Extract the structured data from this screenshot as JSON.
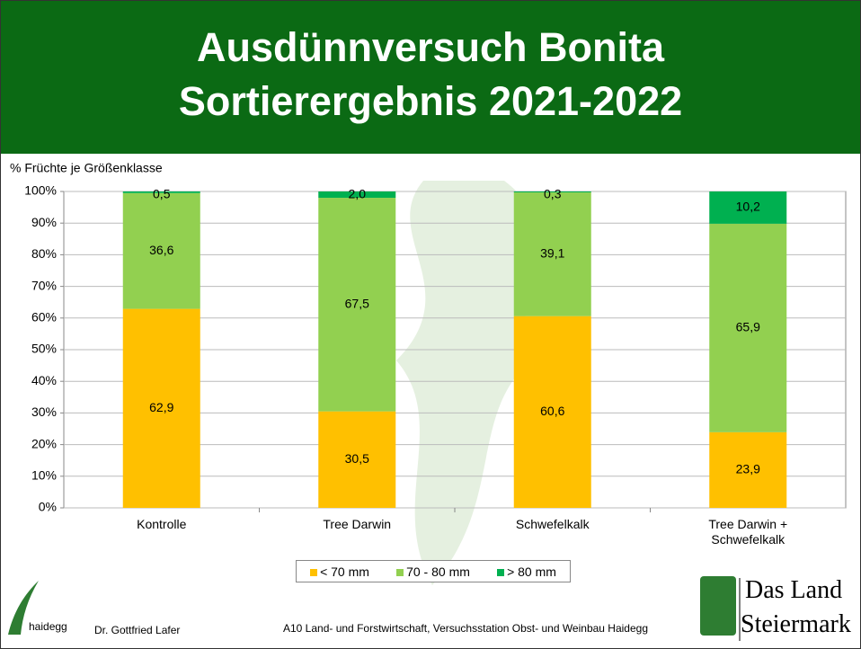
{
  "header": {
    "title_lines": [
      "Ausdünnversuch Bonita",
      "Sortierergebnis 2021-2022"
    ]
  },
  "chart_data": {
    "type": "stacked_bar",
    "y_axis_label": "% Früchte je Größenklasse",
    "categories": [
      "Kontrolle",
      "Tree Darwin",
      "Schwefelkalk",
      "Tree Darwin + Schwefelkalk"
    ],
    "series": [
      {
        "name": "< 70 mm",
        "color": "#ffc000",
        "values": [
          62.9,
          30.5,
          60.6,
          23.9
        ],
        "value_labels": [
          "62,9",
          "30,5",
          "60,6",
          "23,9"
        ]
      },
      {
        "name": "70 - 80 mm",
        "color": "#92d050",
        "values": [
          36.6,
          67.5,
          39.1,
          65.9
        ],
        "value_labels": [
          "36,6",
          "67,5",
          "39,1",
          "65,9"
        ]
      },
      {
        "name": "> 80 mm",
        "color": "#00b050",
        "values": [
          0.5,
          2.0,
          0.3,
          10.2
        ],
        "value_labels": [
          "0,5",
          "2,0",
          "0,3",
          "10,2"
        ]
      }
    ],
    "ylim": [
      0,
      100
    ],
    "yticks": [
      {
        "value": 0,
        "label": "0%"
      },
      {
        "value": 10,
        "label": "10%"
      },
      {
        "value": 20,
        "label": "20%"
      },
      {
        "value": 30,
        "label": "30%"
      },
      {
        "value": 40,
        "label": "40%"
      },
      {
        "value": 50,
        "label": "50%"
      },
      {
        "value": 60,
        "label": "60%"
      },
      {
        "value": 70,
        "label": "70%"
      },
      {
        "value": 80,
        "label": "80%"
      },
      {
        "value": 90,
        "label": "90%"
      },
      {
        "value": 100,
        "label": "100%"
      }
    ],
    "grid": true,
    "legend": "bottom"
  },
  "footer": {
    "logo_text": "haidegg",
    "author": "Dr. Gottfried Lafer",
    "institution": "A10 Land- und Forstwirtschaft, Versuchsstation Obst- und Weinbau Haidegg",
    "brand_line1": "Das Land",
    "brand_line2": "Steiermark"
  }
}
